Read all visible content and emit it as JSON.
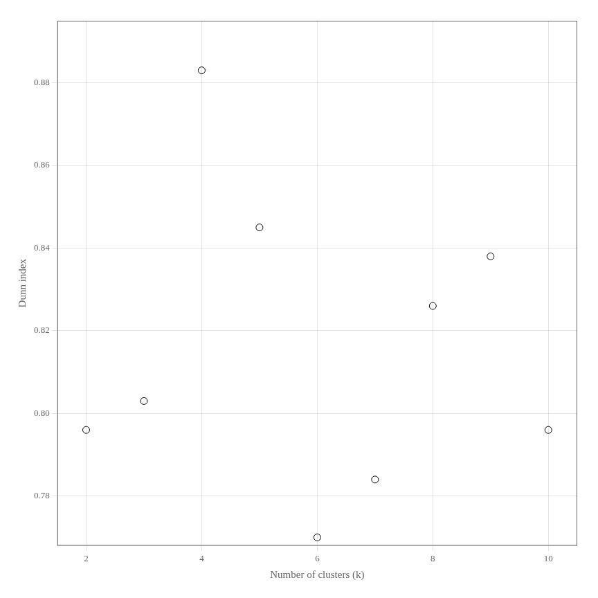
{
  "chart_data": {
    "type": "scatter",
    "x": [
      2,
      3,
      4,
      5,
      6,
      7,
      8,
      9,
      10
    ],
    "y": [
      0.796,
      0.803,
      0.883,
      0.845,
      0.77,
      0.784,
      0.826,
      0.838,
      0.796
    ],
    "xlabel": "Number of clusters (k)",
    "ylabel": "Dunn index",
    "xlim": [
      1.5,
      10.5
    ],
    "ylim": [
      0.768,
      0.895
    ],
    "xticks": [
      2,
      4,
      6,
      8,
      10
    ],
    "yticks": [
      0.78,
      {
        "value": 0.8,
        "label": "0.80"
      },
      0.82,
      0.84,
      0.86,
      0.88
    ],
    "color": "#000000",
    "marker": "open_circle",
    "grid": true
  }
}
